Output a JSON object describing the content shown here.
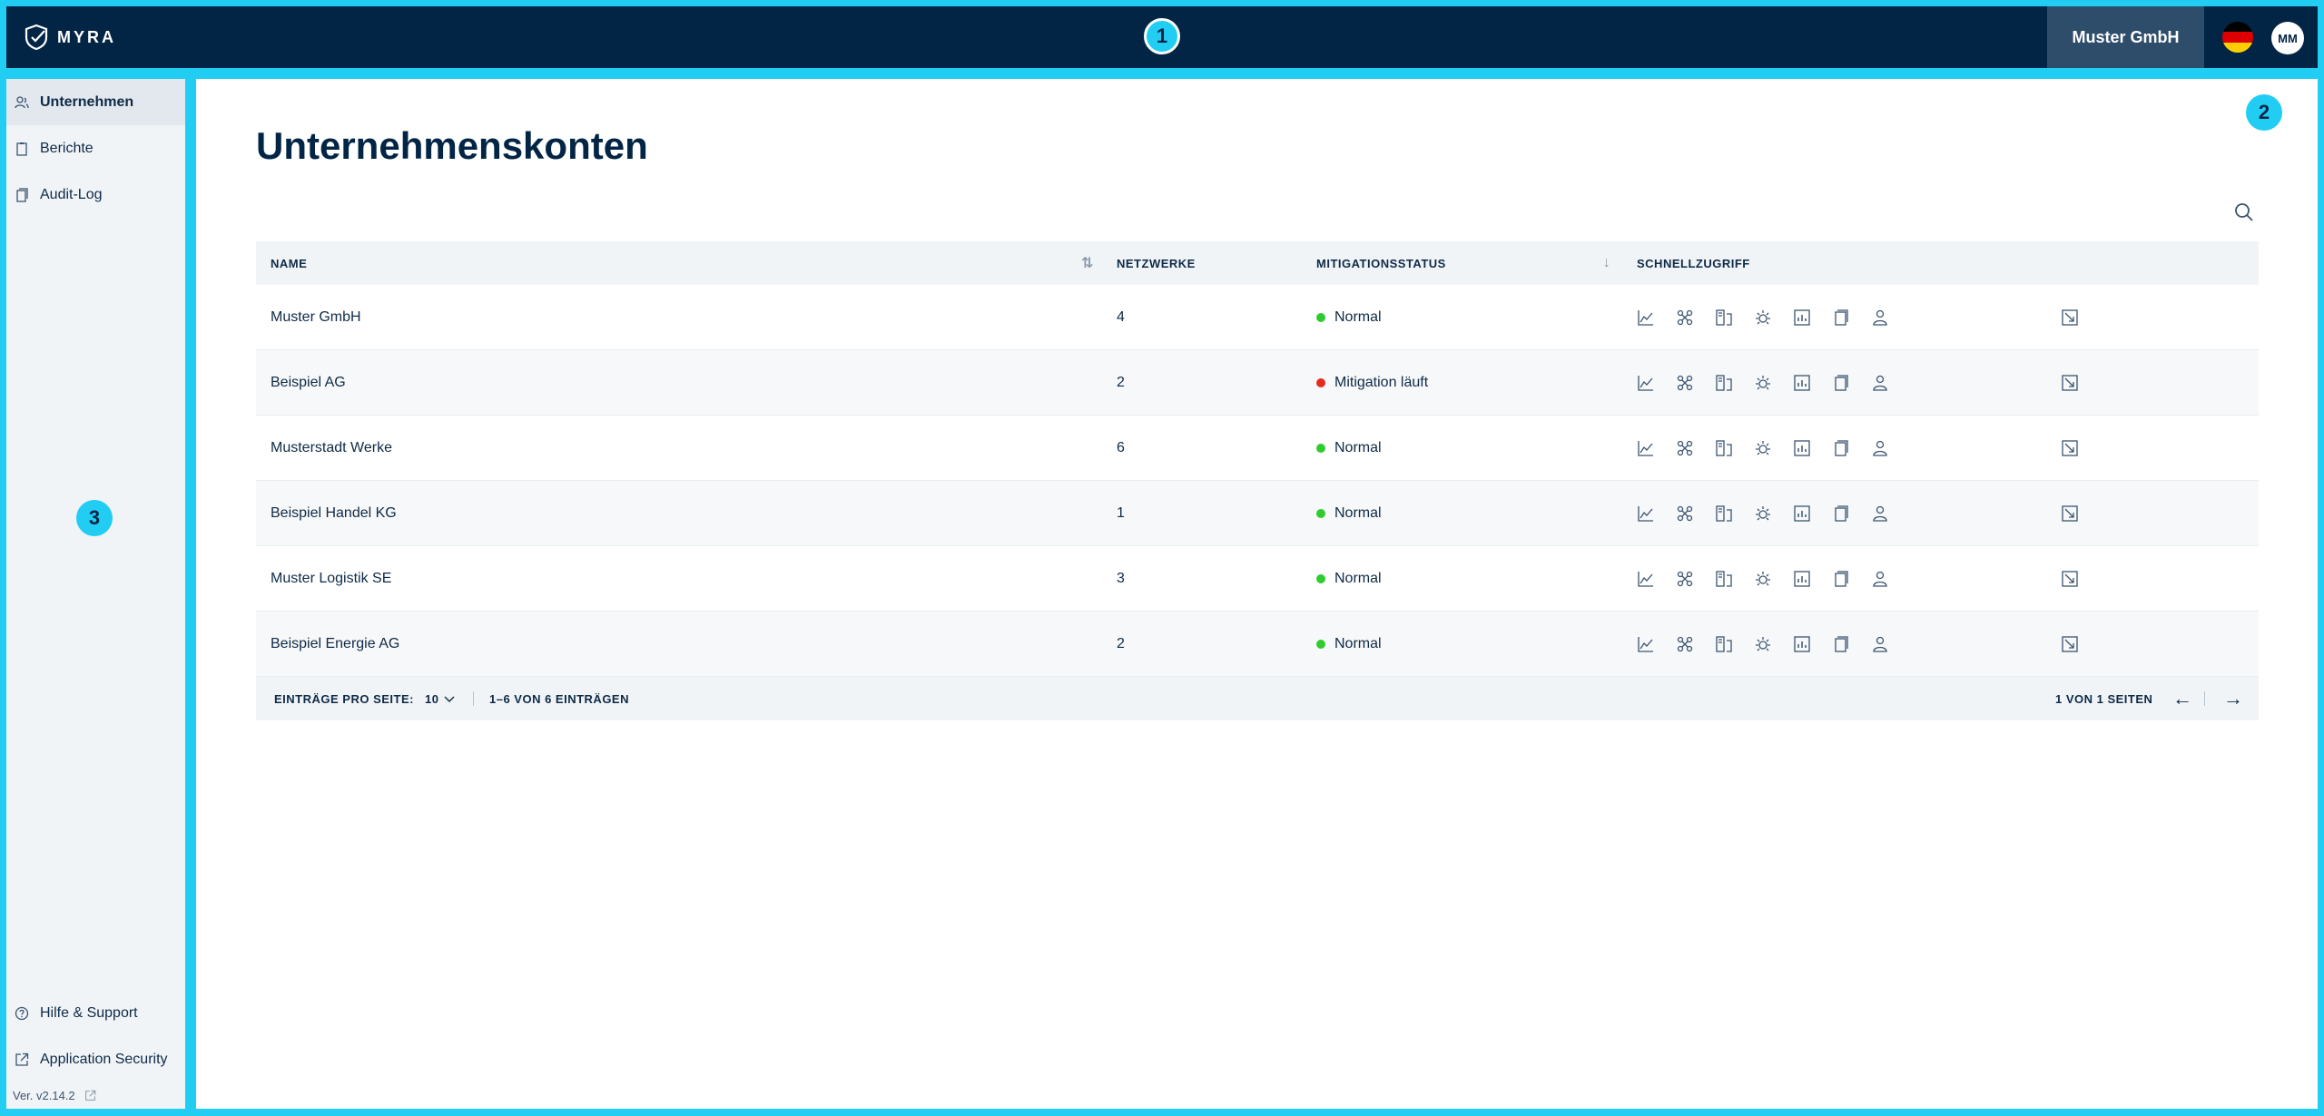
{
  "header": {
    "logo_text": "MYRA",
    "company": "Muster GmbH",
    "avatar_initials": "MM",
    "flag_colors": [
      "#000000",
      "#dd0000",
      "#ffce00"
    ]
  },
  "markers": [
    "1",
    "2",
    "3"
  ],
  "sidebar": {
    "items": [
      {
        "label": "Unternehmen",
        "icon": "users-icon",
        "active": true
      },
      {
        "label": "Berichte",
        "icon": "clipboard-icon",
        "active": false
      },
      {
        "label": "Audit-Log",
        "icon": "document-icon",
        "active": false
      }
    ],
    "bottom": [
      {
        "label": "Hilfe & Support",
        "icon": "help-icon"
      },
      {
        "label": "Application Security",
        "icon": "external-link-icon"
      }
    ],
    "version": "Ver. v2.14.2"
  },
  "main": {
    "title": "Unternehmenskonten",
    "columns": {
      "name": "NAME",
      "networks": "NETZWERKE",
      "mitigation": "MITIGATIONSSTATUS",
      "quick": "SCHNELLZUGRIFF"
    },
    "rows": [
      {
        "name": "Muster GmbH",
        "networks": "4",
        "status": "Normal",
        "status_color": "#2ecc2e"
      },
      {
        "name": "Beispiel AG",
        "networks": "2",
        "status": "Mitigation läuft",
        "status_color": "#e52b1f"
      },
      {
        "name": "Musterstadt Werke",
        "networks": "6",
        "status": "Normal",
        "status_color": "#2ecc2e"
      },
      {
        "name": "Beispiel Handel KG",
        "networks": "1",
        "status": "Normal",
        "status_color": "#2ecc2e"
      },
      {
        "name": "Muster Logistik SE",
        "networks": "3",
        "status": "Normal",
        "status_color": "#2ecc2e"
      },
      {
        "name": "Beispiel Energie AG",
        "networks": "2",
        "status": "Normal",
        "status_color": "#2ecc2e"
      }
    ],
    "quick_icons": [
      "chart-icon",
      "network-icon",
      "server-icon",
      "shield-gear-icon",
      "report-icon",
      "document-icon",
      "user-icon"
    ],
    "footer": {
      "per_page_label": "EINTRÄGE PRO SEITE:",
      "per_page_value": "10",
      "range": "1–6 VON 6 EINTRÄGEN",
      "pages": "1 VON 1 SEITEN",
      "prev": "←",
      "next": "→"
    }
  }
}
